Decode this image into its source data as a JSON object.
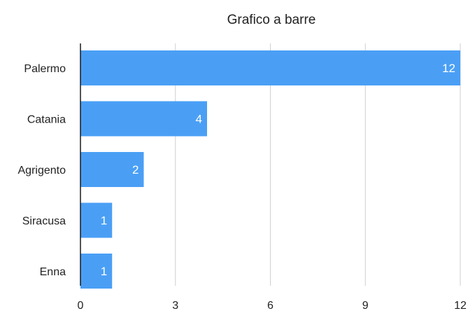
{
  "chart_data": {
    "type": "bar",
    "orientation": "horizontal",
    "title": "Grafico a barre",
    "categories": [
      "Palermo",
      "Catania",
      "Agrigento",
      "Siracusa",
      "Enna"
    ],
    "values": [
      12,
      4,
      2,
      1,
      1
    ],
    "xlim": [
      0,
      12
    ],
    "xticks": [
      0,
      3,
      6,
      9,
      12
    ],
    "grid": true,
    "legend": "none",
    "data_labels": true,
    "bar_color": "#4a9ff5"
  }
}
